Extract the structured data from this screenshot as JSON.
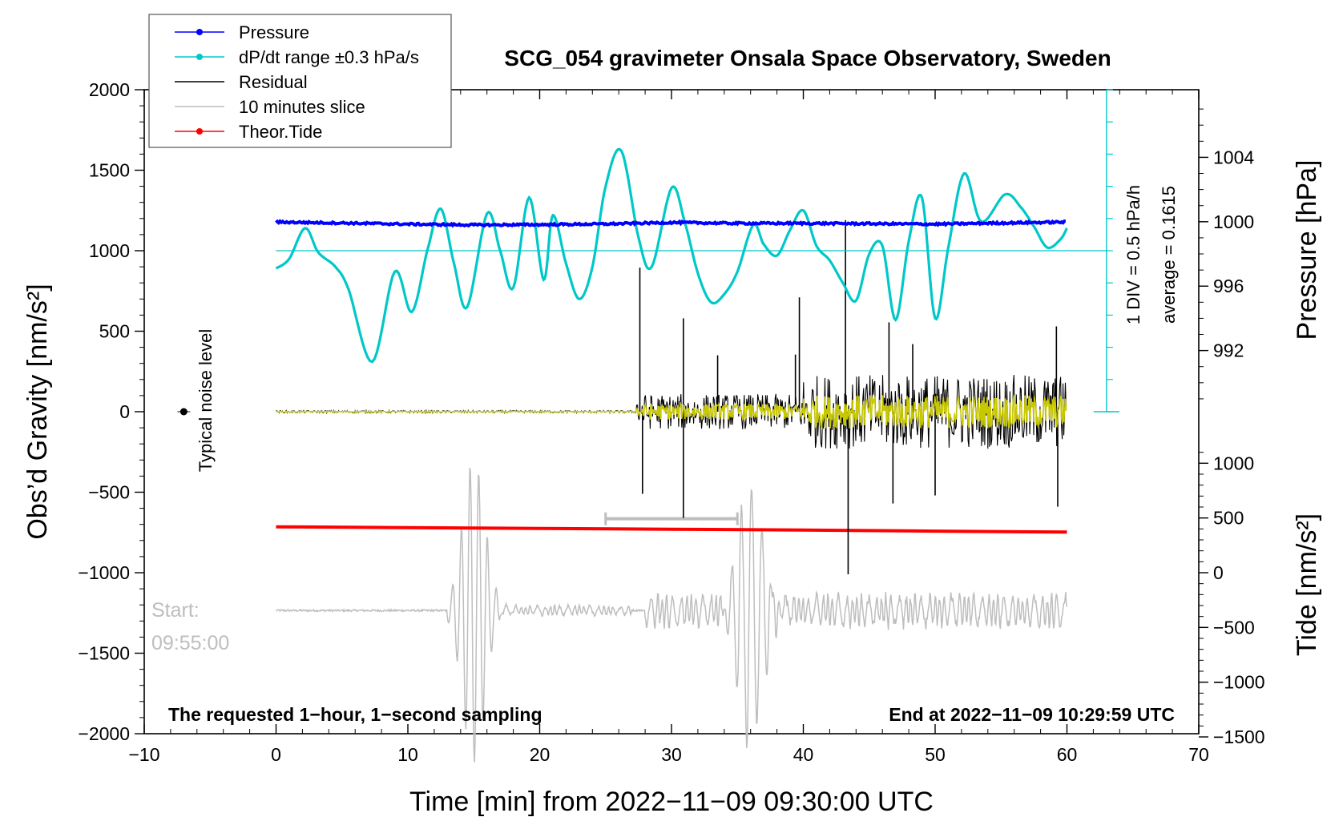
{
  "chart_data": {
    "type": "line",
    "title": "SCG_054 gravimeter Onsala Space Observatory, Sweden",
    "xlabel": "Time [min] from 2022−11−09 09:30:00 UTC",
    "ylabel_left": "Obs’d Gravity [nm/s²]",
    "ylabel_right_top": "Pressure [hPa]",
    "ylabel_right_bottom": "Tide [nm/s²]",
    "xlim": [
      -10,
      70
    ],
    "ylim_left": [
      -2000,
      2000
    ],
    "x_ticks": [
      -10,
      0,
      10,
      20,
      30,
      40,
      50,
      60,
      70
    ],
    "x_tick_labels": [
      "−10",
      "0",
      "10",
      "20",
      "30",
      "40",
      "50",
      "60",
      "70"
    ],
    "y_left_ticks": [
      2000,
      1500,
      1000,
      500,
      0,
      -500,
      -1000,
      -1500,
      -2000
    ],
    "y_left_tick_labels": [
      "2000",
      "1500",
      "1000",
      "500",
      "0",
      "−500",
      "−1000",
      "−1500",
      "−2000"
    ],
    "pressure_axis": {
      "ticks": [
        1004,
        1000,
        996,
        992
      ],
      "tick_labels": [
        "1004",
        "1000",
        "996",
        "992"
      ],
      "gravity_at_1000": 1180,
      "nm_per_hpa": 100
    },
    "tide_axis": {
      "ticks": [
        1000,
        500,
        0,
        -500,
        -1000,
        -1500
      ],
      "tick_labels": [
        "1000",
        "500",
        "0",
        "−500",
        "−1000",
        "−1500"
      ],
      "gravity_at_0": -1000,
      "scale": 0.68
    },
    "legend": [
      {
        "label": "Pressure",
        "color": "#0000ff",
        "marker": true
      },
      {
        "label": "dP/dt range ±0.3 hPa/s",
        "color": "#00c8c8",
        "marker": true
      },
      {
        "label": "Residual",
        "color": "#000000",
        "marker": false
      },
      {
        "label": "10 minutes slice",
        "color": "#bebebe",
        "marker": false
      },
      {
        "label": "Theor.Tide",
        "color": "#ff0000",
        "marker": true
      }
    ],
    "series": [
      {
        "name": "Pressure",
        "color": "#0000ff",
        "x": [
          0,
          5,
          10,
          15,
          20,
          25,
          30,
          35,
          40,
          45,
          50,
          55,
          60
        ],
        "values": [
          1178,
          1172,
          1165,
          1160,
          1162,
          1166,
          1175,
          1170,
          1170,
          1168,
          1165,
          1172,
          1178
        ]
      },
      {
        "name": "dP/dt",
        "color": "#00c8c8",
        "x": [
          0,
          1,
          2.2,
          3.2,
          4.5,
          5.5,
          7.3,
          9,
          10.3,
          11.5,
          12.5,
          13.5,
          14.5,
          16,
          17,
          18,
          19.2,
          20.3,
          21,
          22,
          23,
          24,
          25,
          26.2,
          27.5,
          28.5,
          30,
          31,
          32,
          33,
          34,
          35,
          36.2,
          37,
          38,
          39,
          40,
          41,
          42,
          43,
          44,
          45,
          46,
          47,
          48,
          49,
          50,
          51,
          52.2,
          53.5,
          55.3,
          56.5,
          57.5,
          58.5,
          59.5,
          60
        ],
        "values": [
          890,
          950,
          1140,
          990,
          900,
          760,
          310,
          870,
          620,
          1010,
          1260,
          920,
          650,
          1230,
          1000,
          770,
          1330,
          820,
          1220,
          920,
          700,
          900,
          1400,
          1620,
          1080,
          900,
          1390,
          1180,
          860,
          680,
          730,
          870,
          1160,
          1040,
          970,
          1130,
          1250,
          1030,
          940,
          800,
          690,
          980,
          1030,
          570,
          1060,
          1330,
          580,
          1020,
          1480,
          1180,
          1350,
          1270,
          1150,
          1020,
          1070,
          1140
        ]
      },
      {
        "name": "Theor.Tide",
        "color": "#ff0000",
        "x": [
          0,
          10,
          20,
          30,
          40,
          50,
          60
        ],
        "values": [
          -715,
          -720,
          -725,
          -730,
          -735,
          -742,
          -748
        ]
      }
    ],
    "dpdt_baseline": 1000,
    "residual": {
      "name": "Residual",
      "color": "#000000",
      "quiet_until_min": 27.3,
      "spikes": [
        {
          "x": 27.6,
          "y": 895
        },
        {
          "x": 27.8,
          "y": -510
        },
        {
          "x": 30.9,
          "y": 580
        },
        {
          "x": 30.9,
          "y": -660
        },
        {
          "x": 33.5,
          "y": 350
        },
        {
          "x": 39.4,
          "y": 355
        },
        {
          "x": 39.7,
          "y": 710
        },
        {
          "x": 43.2,
          "y": 1190
        },
        {
          "x": 43.4,
          "y": -1010
        },
        {
          "x": 46.5,
          "y": 555
        },
        {
          "x": 46.8,
          "y": -570
        },
        {
          "x": 48.3,
          "y": 420
        },
        {
          "x": 50.0,
          "y": -520
        },
        {
          "x": 59.2,
          "y": 530
        },
        {
          "x": 59.3,
          "y": -590
        }
      ]
    },
    "residual_filtered": {
      "name": "Filtered residual",
      "color": "#c8c800"
    },
    "slice": {
      "name": "10 minutes slice",
      "color": "#bebebe",
      "baseline": -1235,
      "start_label": "Start:",
      "start_time": "09:55:00",
      "bracket_from": 25,
      "bracket_to": 35,
      "bracket_y": -665
    },
    "noise": {
      "label": "Typical noise level",
      "x": -7,
      "y": 0
    },
    "pressure_note_1": "1 DIV = 0.5 hPa/h",
    "pressure_note_2": "average = 0.1615",
    "note_left": "The requested 1−hour, 1−second sampling",
    "note_right": "End at 2022−11−09 10:29:59 UTC"
  }
}
